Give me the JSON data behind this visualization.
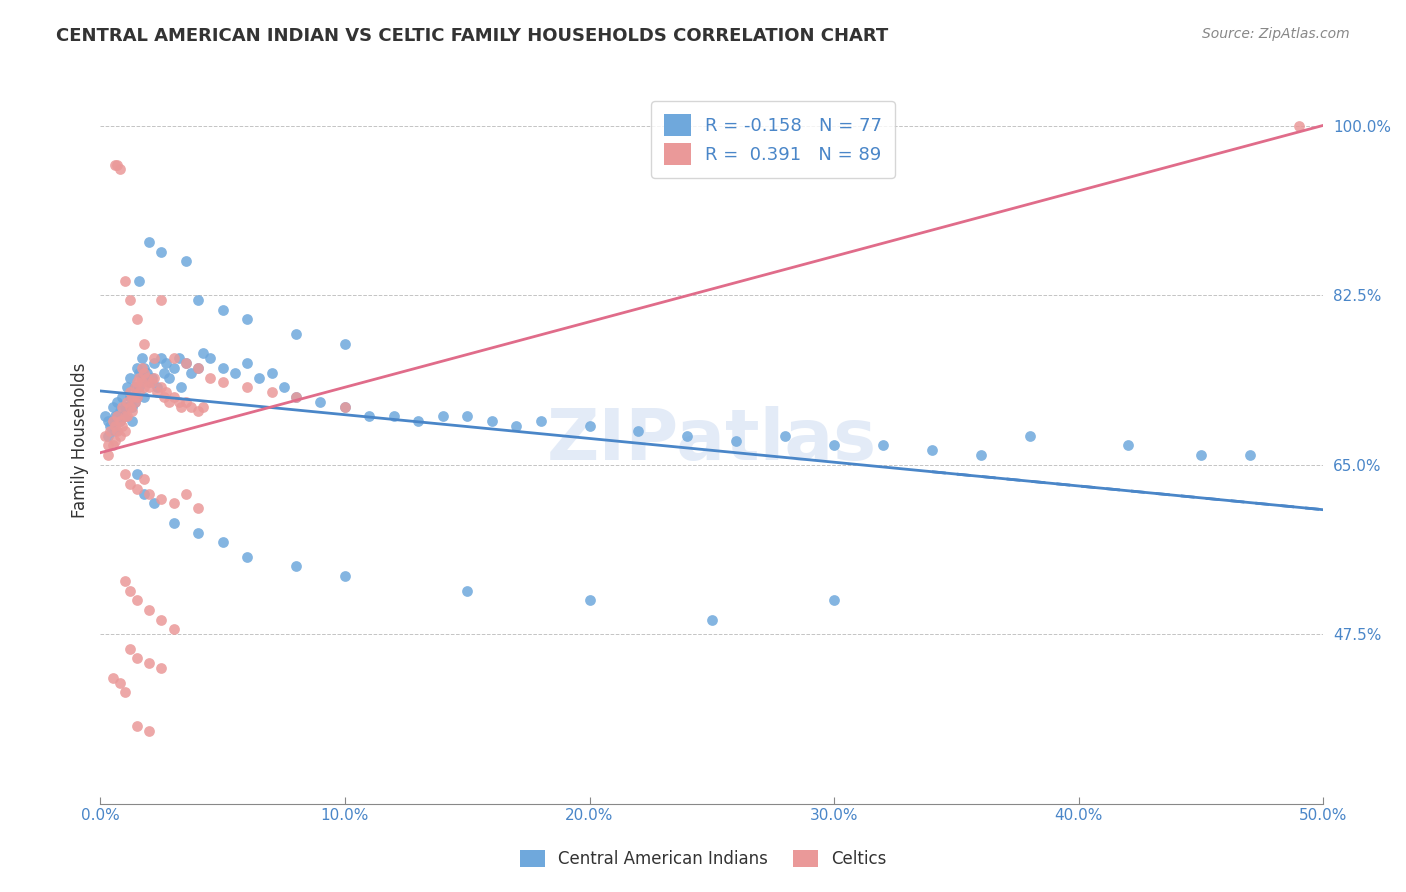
{
  "title": "CENTRAL AMERICAN INDIAN VS CELTIC FAMILY HOUSEHOLDS CORRELATION CHART",
  "source": "Source: ZipAtlas.com",
  "ylabel": "Family Households",
  "ytick_labels": [
    "100.0%",
    "82.5%",
    "65.0%",
    "47.5%"
  ],
  "ytick_values": [
    1.0,
    0.825,
    0.65,
    0.475
  ],
  "xmin": 0.0,
  "xmax": 0.5,
  "ymin": 0.3,
  "ymax": 1.05,
  "color_blue": "#6fa8dc",
  "color_pink": "#ea9999",
  "trendline_blue_color": "#4a86c8",
  "trendline_pink_color": "#e06c8a",
  "watermark": "ZIPatlas",
  "blue_scatter": [
    [
      0.002,
      0.7
    ],
    [
      0.003,
      0.695
    ],
    [
      0.003,
      0.68
    ],
    [
      0.004,
      0.69
    ],
    [
      0.005,
      0.71
    ],
    [
      0.005,
      0.695
    ],
    [
      0.006,
      0.7
    ],
    [
      0.006,
      0.685
    ],
    [
      0.007,
      0.715
    ],
    [
      0.007,
      0.7
    ],
    [
      0.008,
      0.705
    ],
    [
      0.008,
      0.695
    ],
    [
      0.009,
      0.72
    ],
    [
      0.009,
      0.7
    ],
    [
      0.01,
      0.71
    ],
    [
      0.01,
      0.7
    ],
    [
      0.011,
      0.73
    ],
    [
      0.011,
      0.71
    ],
    [
      0.012,
      0.74
    ],
    [
      0.012,
      0.72
    ],
    [
      0.013,
      0.71
    ],
    [
      0.013,
      0.695
    ],
    [
      0.014,
      0.73
    ],
    [
      0.014,
      0.715
    ],
    [
      0.015,
      0.75
    ],
    [
      0.015,
      0.72
    ],
    [
      0.016,
      0.745
    ],
    [
      0.016,
      0.73
    ],
    [
      0.017,
      0.76
    ],
    [
      0.017,
      0.74
    ],
    [
      0.018,
      0.75
    ],
    [
      0.018,
      0.72
    ],
    [
      0.019,
      0.745
    ],
    [
      0.02,
      0.735
    ],
    [
      0.021,
      0.74
    ],
    [
      0.022,
      0.755
    ],
    [
      0.023,
      0.73
    ],
    [
      0.025,
      0.76
    ],
    [
      0.026,
      0.745
    ],
    [
      0.027,
      0.755
    ],
    [
      0.028,
      0.74
    ],
    [
      0.03,
      0.75
    ],
    [
      0.032,
      0.76
    ],
    [
      0.033,
      0.73
    ],
    [
      0.035,
      0.755
    ],
    [
      0.037,
      0.745
    ],
    [
      0.04,
      0.75
    ],
    [
      0.042,
      0.765
    ],
    [
      0.045,
      0.76
    ],
    [
      0.05,
      0.75
    ],
    [
      0.055,
      0.745
    ],
    [
      0.06,
      0.755
    ],
    [
      0.065,
      0.74
    ],
    [
      0.07,
      0.745
    ],
    [
      0.075,
      0.73
    ],
    [
      0.08,
      0.72
    ],
    [
      0.09,
      0.715
    ],
    [
      0.1,
      0.71
    ],
    [
      0.11,
      0.7
    ],
    [
      0.12,
      0.7
    ],
    [
      0.13,
      0.695
    ],
    [
      0.14,
      0.7
    ],
    [
      0.15,
      0.7
    ],
    [
      0.16,
      0.695
    ],
    [
      0.17,
      0.69
    ],
    [
      0.18,
      0.695
    ],
    [
      0.2,
      0.69
    ],
    [
      0.22,
      0.685
    ],
    [
      0.24,
      0.68
    ],
    [
      0.26,
      0.675
    ],
    [
      0.28,
      0.68
    ],
    [
      0.3,
      0.67
    ],
    [
      0.32,
      0.67
    ],
    [
      0.34,
      0.665
    ],
    [
      0.36,
      0.66
    ],
    [
      0.016,
      0.84
    ],
    [
      0.02,
      0.88
    ],
    [
      0.025,
      0.87
    ],
    [
      0.035,
      0.86
    ],
    [
      0.04,
      0.82
    ],
    [
      0.05,
      0.81
    ],
    [
      0.06,
      0.8
    ],
    [
      0.08,
      0.785
    ],
    [
      0.1,
      0.775
    ],
    [
      0.015,
      0.64
    ],
    [
      0.018,
      0.62
    ],
    [
      0.022,
      0.61
    ],
    [
      0.03,
      0.59
    ],
    [
      0.04,
      0.58
    ],
    [
      0.05,
      0.57
    ],
    [
      0.06,
      0.555
    ],
    [
      0.08,
      0.545
    ],
    [
      0.1,
      0.535
    ],
    [
      0.15,
      0.52
    ],
    [
      0.2,
      0.51
    ],
    [
      0.25,
      0.49
    ],
    [
      0.3,
      0.51
    ],
    [
      0.38,
      0.68
    ],
    [
      0.42,
      0.67
    ],
    [
      0.45,
      0.66
    ],
    [
      0.47,
      0.66
    ]
  ],
  "pink_scatter": [
    [
      0.002,
      0.68
    ],
    [
      0.003,
      0.67
    ],
    [
      0.003,
      0.66
    ],
    [
      0.004,
      0.685
    ],
    [
      0.005,
      0.695
    ],
    [
      0.005,
      0.67
    ],
    [
      0.006,
      0.69
    ],
    [
      0.006,
      0.675
    ],
    [
      0.007,
      0.7
    ],
    [
      0.007,
      0.685
    ],
    [
      0.008,
      0.695
    ],
    [
      0.008,
      0.68
    ],
    [
      0.009,
      0.71
    ],
    [
      0.009,
      0.69
    ],
    [
      0.01,
      0.7
    ],
    [
      0.01,
      0.685
    ],
    [
      0.011,
      0.715
    ],
    [
      0.011,
      0.7
    ],
    [
      0.012,
      0.725
    ],
    [
      0.012,
      0.71
    ],
    [
      0.013,
      0.72
    ],
    [
      0.013,
      0.705
    ],
    [
      0.014,
      0.73
    ],
    [
      0.014,
      0.715
    ],
    [
      0.015,
      0.735
    ],
    [
      0.015,
      0.72
    ],
    [
      0.016,
      0.74
    ],
    [
      0.016,
      0.725
    ],
    [
      0.017,
      0.75
    ],
    [
      0.017,
      0.735
    ],
    [
      0.018,
      0.745
    ],
    [
      0.018,
      0.73
    ],
    [
      0.019,
      0.74
    ],
    [
      0.02,
      0.73
    ],
    [
      0.021,
      0.735
    ],
    [
      0.022,
      0.74
    ],
    [
      0.023,
      0.725
    ],
    [
      0.025,
      0.73
    ],
    [
      0.026,
      0.72
    ],
    [
      0.027,
      0.725
    ],
    [
      0.028,
      0.715
    ],
    [
      0.03,
      0.72
    ],
    [
      0.032,
      0.715
    ],
    [
      0.033,
      0.71
    ],
    [
      0.035,
      0.715
    ],
    [
      0.037,
      0.71
    ],
    [
      0.04,
      0.705
    ],
    [
      0.042,
      0.71
    ],
    [
      0.006,
      0.96
    ],
    [
      0.007,
      0.96
    ],
    [
      0.008,
      0.955
    ],
    [
      0.01,
      0.84
    ],
    [
      0.012,
      0.82
    ],
    [
      0.015,
      0.8
    ],
    [
      0.018,
      0.775
    ],
    [
      0.022,
      0.76
    ],
    [
      0.025,
      0.82
    ],
    [
      0.03,
      0.76
    ],
    [
      0.035,
      0.755
    ],
    [
      0.04,
      0.75
    ],
    [
      0.045,
      0.74
    ],
    [
      0.05,
      0.735
    ],
    [
      0.06,
      0.73
    ],
    [
      0.07,
      0.725
    ],
    [
      0.08,
      0.72
    ],
    [
      0.1,
      0.71
    ],
    [
      0.01,
      0.64
    ],
    [
      0.012,
      0.63
    ],
    [
      0.015,
      0.625
    ],
    [
      0.018,
      0.635
    ],
    [
      0.02,
      0.62
    ],
    [
      0.025,
      0.615
    ],
    [
      0.03,
      0.61
    ],
    [
      0.035,
      0.62
    ],
    [
      0.04,
      0.605
    ],
    [
      0.01,
      0.53
    ],
    [
      0.012,
      0.52
    ],
    [
      0.015,
      0.51
    ],
    [
      0.02,
      0.5
    ],
    [
      0.025,
      0.49
    ],
    [
      0.03,
      0.48
    ],
    [
      0.012,
      0.46
    ],
    [
      0.015,
      0.45
    ],
    [
      0.02,
      0.445
    ],
    [
      0.025,
      0.44
    ],
    [
      0.005,
      0.43
    ],
    [
      0.008,
      0.425
    ],
    [
      0.01,
      0.415
    ],
    [
      0.015,
      0.38
    ],
    [
      0.02,
      0.375
    ],
    [
      0.49,
      1.0
    ]
  ]
}
